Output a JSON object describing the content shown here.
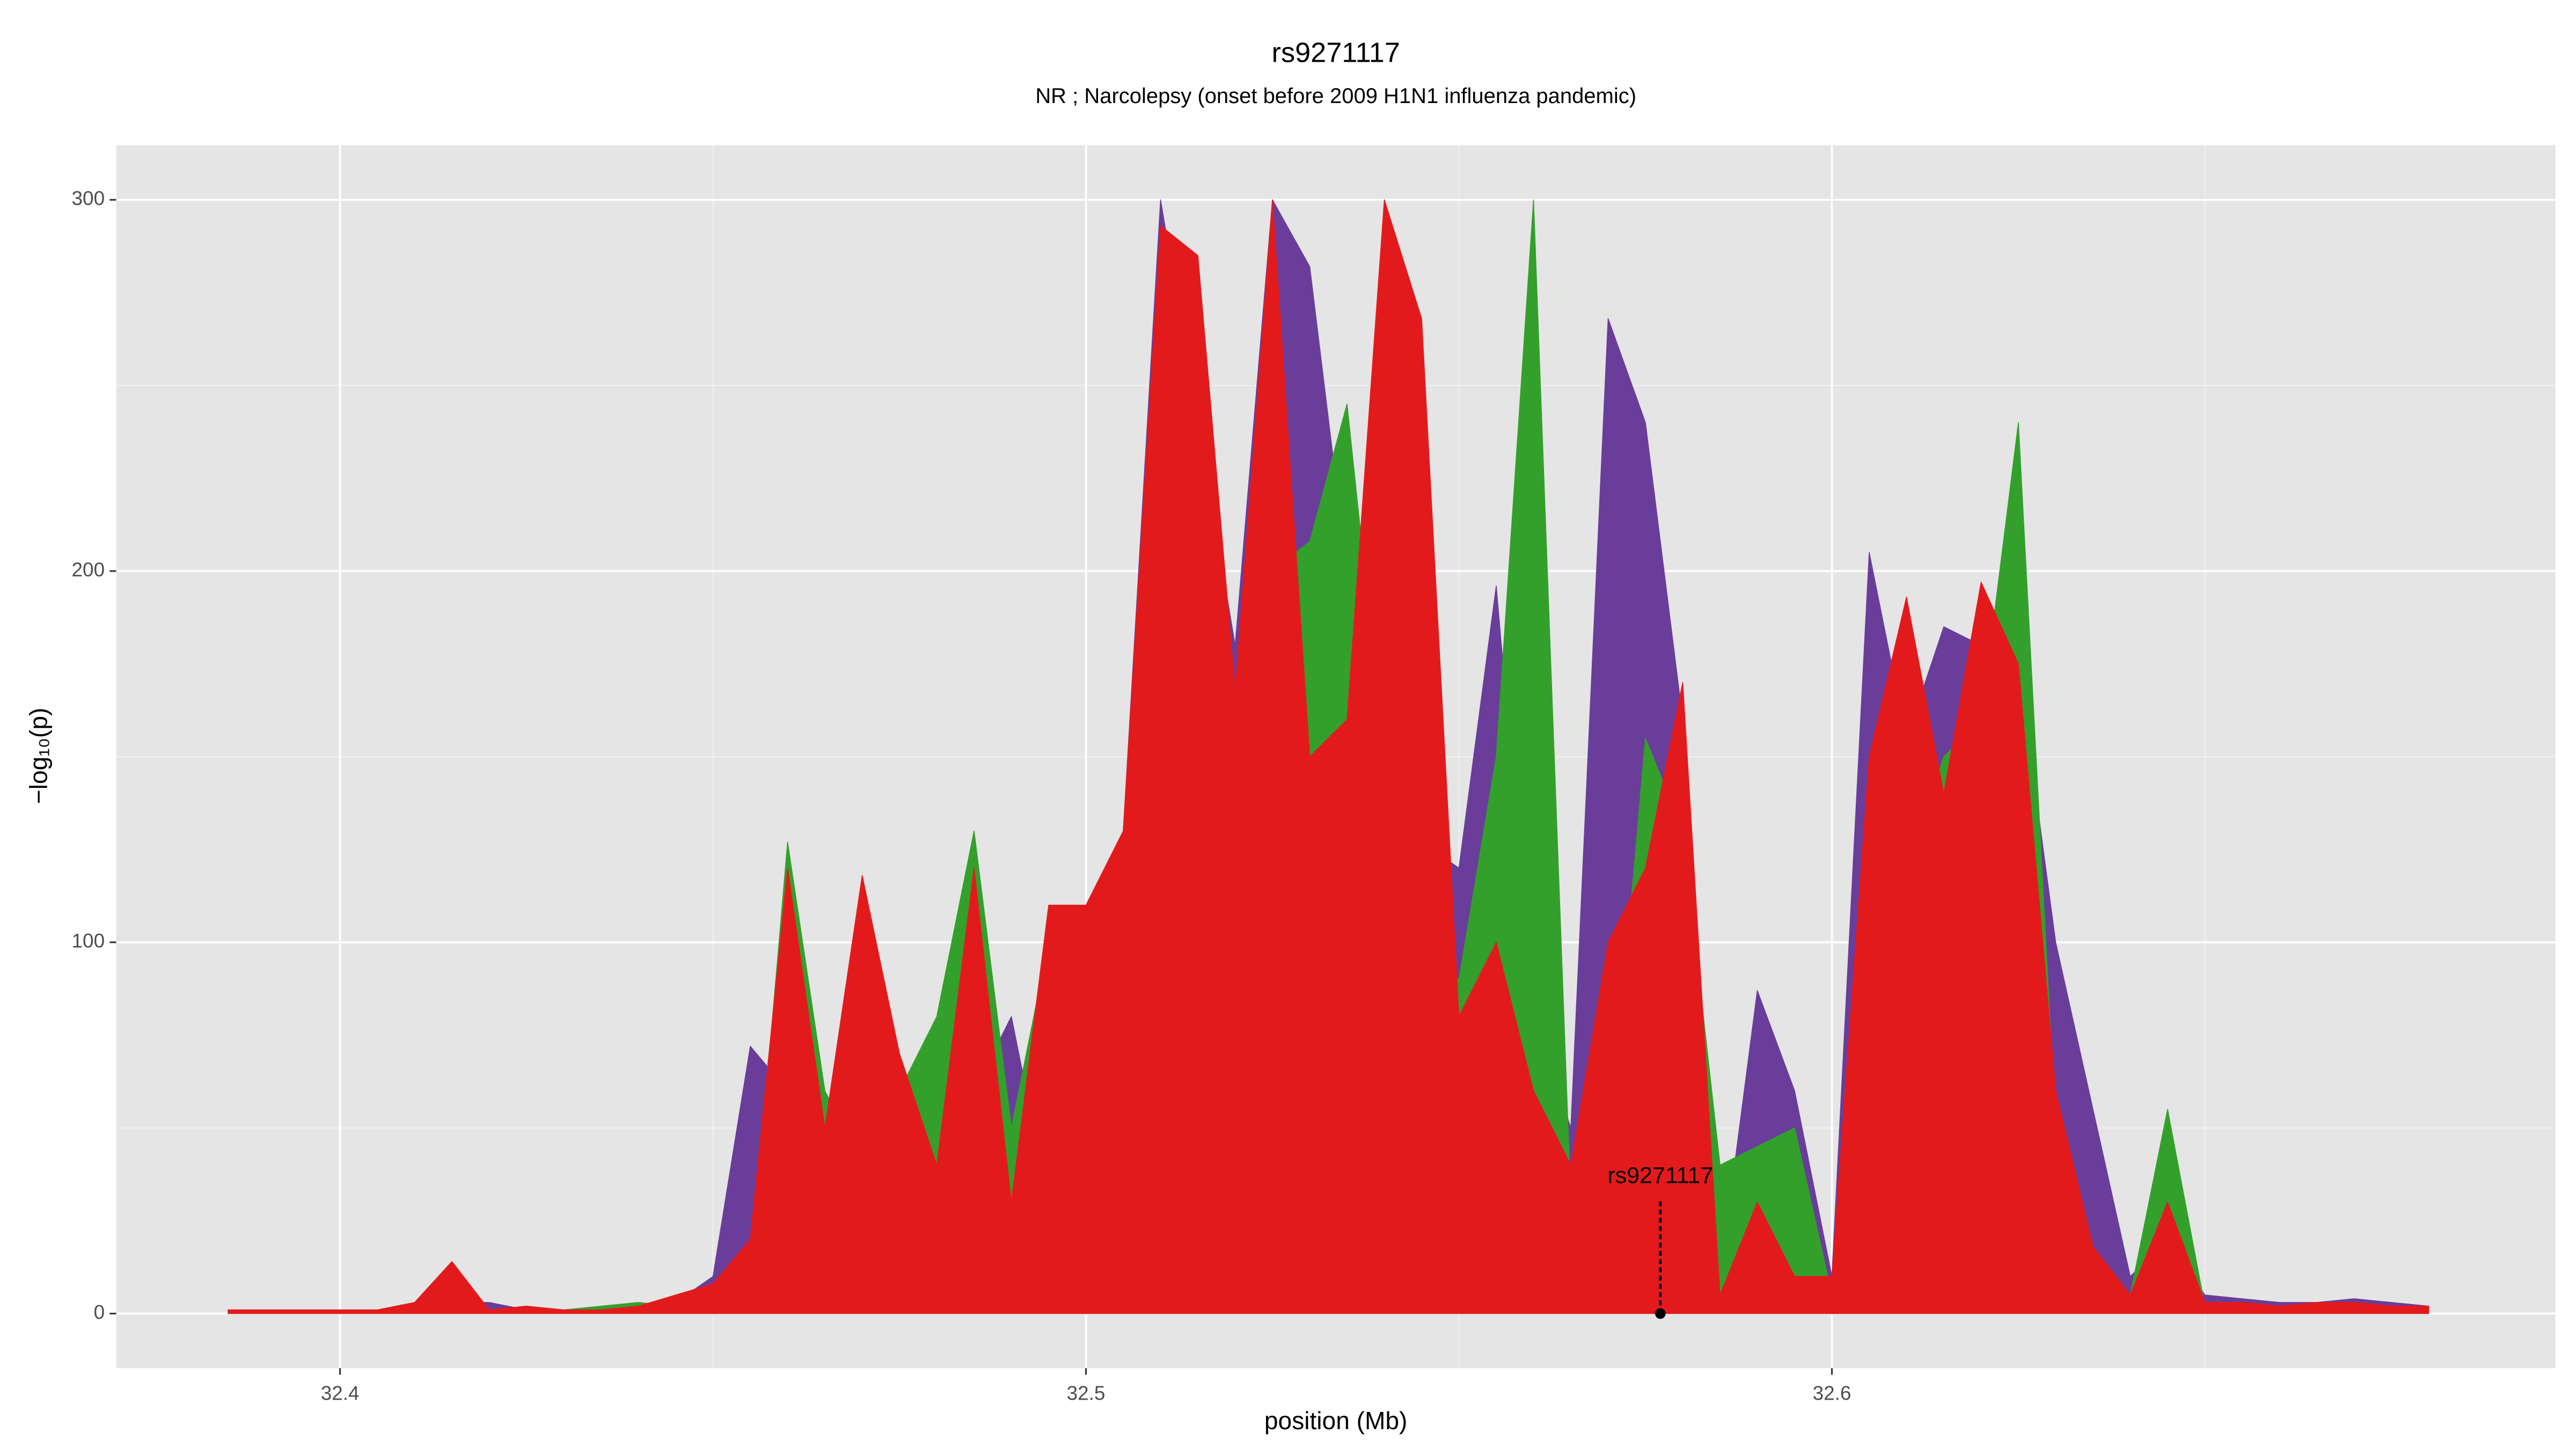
{
  "chart_data": {
    "type": "area",
    "title": "rs9271117",
    "subtitle": "NR ; Narcolepsy (onset before 2009 H1N1 influenza pandemic)",
    "x_label": "position (Mb)",
    "y_label": "−log₁₀(p)",
    "xlim": [
      32.37,
      32.697
    ],
    "ylim": [
      -14.7,
      314.7
    ],
    "xticks": [
      32.4,
      32.5,
      32.6
    ],
    "yticks": [
      0,
      100,
      200,
      300
    ],
    "grid": true,
    "x": [
      32.385,
      32.39,
      32.395,
      32.4,
      32.405,
      32.41,
      32.415,
      32.42,
      32.425,
      32.43,
      32.435,
      32.44,
      32.445,
      32.45,
      32.455,
      32.46,
      32.465,
      32.47,
      32.475,
      32.48,
      32.485,
      32.49,
      32.495,
      32.5,
      32.505,
      32.51,
      32.515,
      32.52,
      32.525,
      32.53,
      32.535,
      32.54,
      32.545,
      32.55,
      32.555,
      32.56,
      32.565,
      32.57,
      32.575,
      32.58,
      32.585,
      32.59,
      32.595,
      32.6,
      32.605,
      32.61,
      32.615,
      32.62,
      32.625,
      32.63,
      32.635,
      32.64,
      32.645,
      32.65,
      32.655,
      32.66,
      32.665,
      32.67,
      32.675,
      32.68
    ],
    "series": [
      {
        "color": "#6a3d9a",
        "values": [
          0,
          0,
          0,
          1,
          1,
          1,
          3,
          3,
          1,
          1,
          1,
          2,
          3,
          10,
          72,
          60,
          30,
          90,
          50,
          30,
          60,
          80,
          30,
          70,
          130,
          300,
          240,
          180,
          300,
          282,
          200,
          180,
          127,
          120,
          196,
          80,
          50,
          268,
          240,
          160,
          10,
          87,
          60,
          10,
          205,
          155,
          185,
          180,
          175,
          100,
          55,
          10,
          20,
          5,
          4,
          3,
          3,
          4,
          3,
          2
        ]
      },
      {
        "color": "#33a02c",
        "values": [
          0,
          0,
          0,
          0,
          0,
          0,
          0,
          0,
          0,
          1,
          2,
          3,
          2,
          2,
          10,
          127,
          60,
          40,
          60,
          80,
          130,
          50,
          100,
          85,
          50,
          60,
          100,
          120,
          200,
          208,
          245,
          150,
          100,
          90,
          150,
          300,
          30,
          40,
          155,
          130,
          40,
          45,
          50,
          5,
          100,
          120,
          150,
          160,
          240,
          50,
          10,
          5,
          55,
          2,
          2,
          1,
          1,
          1,
          1,
          1
        ]
      },
      {
        "color": "#e31a1c",
        "values": [
          1,
          1,
          1,
          1,
          1,
          3,
          14,
          1,
          2,
          1,
          1,
          2,
          5,
          8,
          20,
          120,
          50,
          118,
          70,
          40,
          120,
          30,
          110,
          110,
          130,
          293,
          285,
          168,
          300,
          150,
          160,
          300,
          268,
          80,
          100,
          60,
          40,
          100,
          120,
          170,
          5,
          30,
          10,
          10,
          150,
          193,
          140,
          197,
          175,
          60,
          18,
          5,
          30,
          3,
          3,
          2,
          3,
          3,
          2,
          2
        ]
      }
    ],
    "annotation": {
      "text": "rs9271117",
      "x": 32.577,
      "y": 0,
      "segment": [
        0,
        31
      ]
    }
  }
}
